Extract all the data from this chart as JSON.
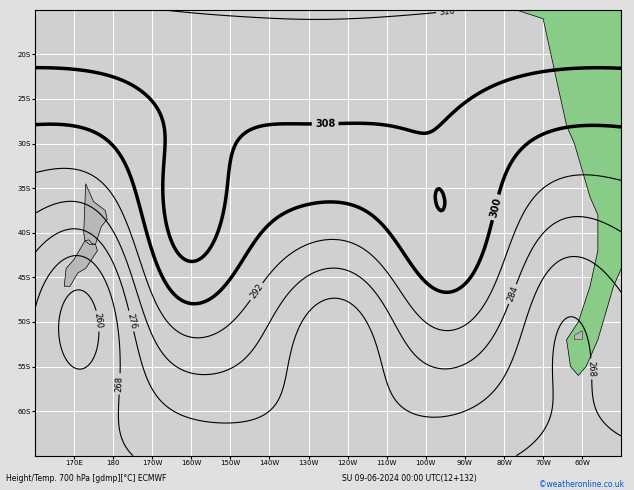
{
  "title_bottom": "Height/Temp. 700 hPa [gdmp][°C] ECMWF",
  "date_str": "SU 09-06-2024 00:00 UTC(12+132)",
  "watermark": "©weatheronline.co.uk",
  "bg_color": "#e0e0e0",
  "map_bg": "#d0d0d0",
  "grid_color": "#ffffff",
  "lon_min": 160,
  "lon_max": 310,
  "lat_min": -65,
  "lat_max": -15,
  "grid_lons": [
    170,
    180,
    190,
    200,
    210,
    220,
    230,
    240,
    250,
    260,
    270,
    280,
    290,
    300
  ],
  "grid_lats": [
    -60,
    -55,
    -50,
    -45,
    -40,
    -35,
    -30,
    -25,
    -20
  ],
  "bottom_label_lon_texts": [
    "170E",
    "180",
    "170W",
    "160W",
    "150W",
    "140W",
    "130W",
    "120W",
    "110W",
    "100W",
    "90W",
    "80W",
    "70W",
    "60W"
  ],
  "left_label_lat_texts": [
    "60S",
    "55S",
    "50S",
    "45S",
    "40S",
    "35S",
    "30S",
    "25S",
    "20S"
  ]
}
